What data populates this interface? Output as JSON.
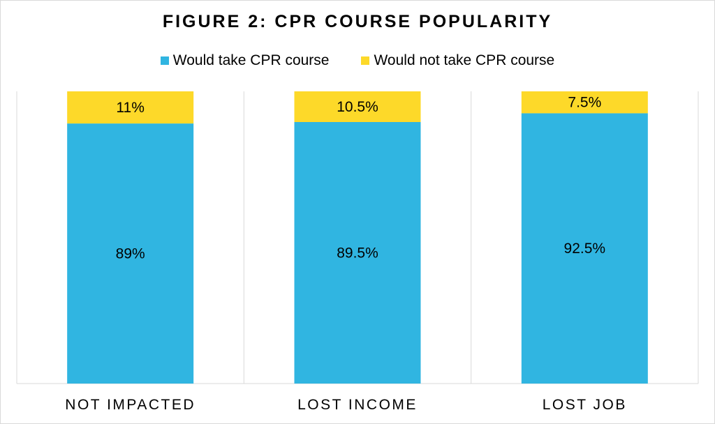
{
  "chart_data": {
    "type": "bar",
    "stacked": true,
    "title": "FIGURE 2: CPR COURSE POPULARITY",
    "categories": [
      "NOT IMPACTED",
      "LOST INCOME",
      "LOST JOB"
    ],
    "series": [
      {
        "name": "Would take CPR course",
        "color": "#30B5E1",
        "values": [
          89,
          89.5,
          92.5
        ],
        "labels": [
          "89%",
          "89.5%",
          "92.5%"
        ]
      },
      {
        "name": "Would not take CPR course",
        "color": "#FDD929",
        "values": [
          11,
          10.5,
          7.5
        ],
        "labels": [
          "11%",
          "10.5%",
          "7.5%"
        ]
      }
    ],
    "ylim": [
      0,
      100
    ],
    "legend_position": "top",
    "grid": false
  }
}
